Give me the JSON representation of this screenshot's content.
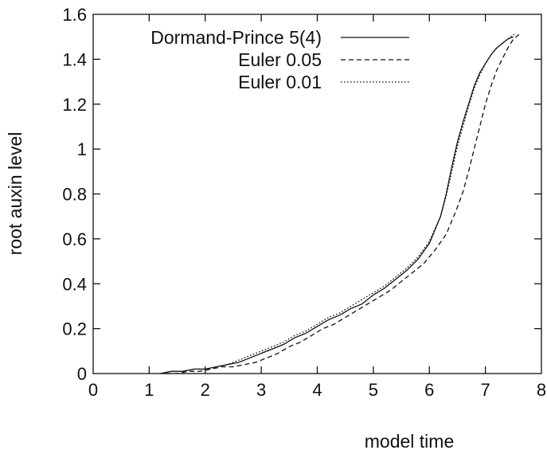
{
  "chart_data": {
    "type": "line",
    "title": "",
    "xlabel": "model time",
    "ylabel": "root auxin level",
    "xlim": [
      0,
      8
    ],
    "ylim": [
      0,
      1.6
    ],
    "x_ticks": [
      0,
      1,
      2,
      3,
      4,
      5,
      6,
      7,
      8
    ],
    "y_ticks": [
      0,
      0.2,
      0.4,
      0.6,
      0.8,
      1,
      1.2,
      1.4,
      1.6
    ],
    "x_tick_labels": [
      "0",
      "1",
      "2",
      "3",
      "4",
      "5",
      "6",
      "7",
      "8"
    ],
    "y_tick_labels": [
      "0",
      "0.2",
      "0.4",
      "0.6",
      "0.8",
      "1",
      "1.2",
      "1.4",
      "1.6"
    ],
    "grid": false,
    "legend_position": "top-left",
    "series": [
      {
        "name": "Dormand-Prince 5(4)",
        "style": "solid",
        "x": [
          1.2,
          1.4,
          1.6,
          1.8,
          2.0,
          2.2,
          2.4,
          2.6,
          2.8,
          3.0,
          3.2,
          3.4,
          3.6,
          3.8,
          4.0,
          4.2,
          4.4,
          4.6,
          4.8,
          5.0,
          5.2,
          5.4,
          5.6,
          5.8,
          6.0,
          6.2,
          6.3,
          6.4,
          6.5,
          6.6,
          6.7,
          6.8,
          6.9,
          7.0,
          7.1,
          7.2,
          7.3,
          7.4,
          7.5
        ],
        "y": [
          0.0,
          0.01,
          0.01,
          0.02,
          0.02,
          0.03,
          0.04,
          0.05,
          0.07,
          0.09,
          0.11,
          0.13,
          0.16,
          0.18,
          0.21,
          0.24,
          0.26,
          0.29,
          0.31,
          0.35,
          0.38,
          0.42,
          0.46,
          0.51,
          0.58,
          0.7,
          0.8,
          0.92,
          1.03,
          1.12,
          1.2,
          1.28,
          1.34,
          1.38,
          1.42,
          1.45,
          1.47,
          1.49,
          1.5
        ]
      },
      {
        "name": "Euler 0.05",
        "style": "dashed",
        "x": [
          1.3,
          1.5,
          1.7,
          1.9,
          2.1,
          2.3,
          2.5,
          2.7,
          2.9,
          3.1,
          3.3,
          3.5,
          3.7,
          3.9,
          4.1,
          4.3,
          4.5,
          4.7,
          4.9,
          5.1,
          5.3,
          5.5,
          5.7,
          5.9,
          6.1,
          6.3,
          6.5,
          6.6,
          6.7,
          6.8,
          6.9,
          7.0,
          7.1,
          7.2,
          7.3,
          7.4,
          7.5,
          7.6
        ],
        "y": [
          0.0,
          0.0,
          0.01,
          0.01,
          0.02,
          0.03,
          0.03,
          0.04,
          0.05,
          0.07,
          0.09,
          0.12,
          0.14,
          0.17,
          0.2,
          0.22,
          0.25,
          0.28,
          0.31,
          0.34,
          0.37,
          0.41,
          0.45,
          0.49,
          0.55,
          0.62,
          0.74,
          0.81,
          0.9,
          1.0,
          1.1,
          1.2,
          1.28,
          1.35,
          1.4,
          1.45,
          1.49,
          1.51
        ]
      },
      {
        "name": "Euler 0.01",
        "style": "dotted",
        "x": [
          1.2,
          1.4,
          1.6,
          1.8,
          2.0,
          2.2,
          2.4,
          2.6,
          2.8,
          3.0,
          3.2,
          3.4,
          3.6,
          3.8,
          4.0,
          4.2,
          4.4,
          4.6,
          4.8,
          5.0,
          5.2,
          5.4,
          5.6,
          5.8,
          6.0,
          6.2,
          6.3,
          6.4,
          6.5,
          6.6,
          6.7,
          6.8,
          6.9,
          7.0,
          7.1,
          7.2,
          7.3,
          7.4,
          7.5,
          7.55
        ],
        "y": [
          0.0,
          0.01,
          0.01,
          0.02,
          0.02,
          0.03,
          0.04,
          0.06,
          0.08,
          0.1,
          0.12,
          0.14,
          0.17,
          0.19,
          0.22,
          0.25,
          0.27,
          0.3,
          0.33,
          0.36,
          0.39,
          0.43,
          0.47,
          0.52,
          0.59,
          0.7,
          0.79,
          0.9,
          1.01,
          1.1,
          1.19,
          1.27,
          1.33,
          1.38,
          1.42,
          1.45,
          1.47,
          1.49,
          1.51,
          1.51
        ]
      }
    ]
  }
}
